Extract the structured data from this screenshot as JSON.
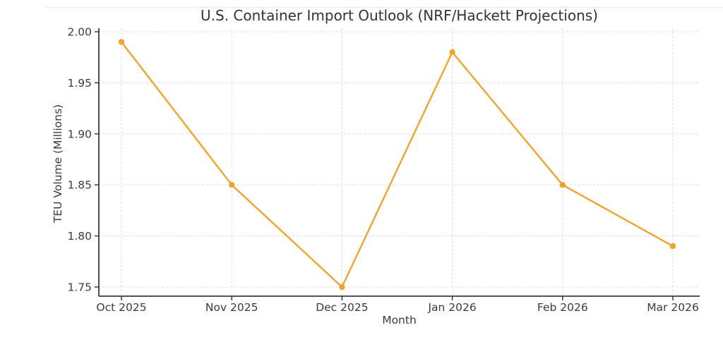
{
  "chart_data": {
    "type": "line",
    "title": "U.S. Container Import Outlook (NRF/Hackett Projections)",
    "xlabel": "Month",
    "ylabel": "TEU Volume (Millions)",
    "categories": [
      "Oct 2025",
      "Nov 2025",
      "Dec 2025",
      "Jan 2026",
      "Feb 2026",
      "Mar 2026"
    ],
    "series": [
      {
        "name": "TEU Volume (Millions)",
        "values": [
          1.99,
          1.85,
          1.75,
          1.98,
          1.85,
          1.79
        ],
        "color": "#F0A42F",
        "marker": "circle"
      }
    ],
    "y_ticks": [
      2.0,
      1.95,
      1.9,
      1.85,
      1.8,
      1.75
    ],
    "y_tick_labels": [
      "2.00",
      "1.95",
      "1.90",
      "1.85",
      "1.80",
      "1.75"
    ],
    "ylim": [
      1.741,
      2.004
    ],
    "grid": true,
    "grid_style": "dashed",
    "legend": "none"
  },
  "style": {
    "background": "#ffffff",
    "text_color": "#3b3b3b",
    "title_color": "#333333",
    "grid_color": "#dedede",
    "spine_color": "#3b3b3b",
    "line_color": "#F0A42F"
  }
}
